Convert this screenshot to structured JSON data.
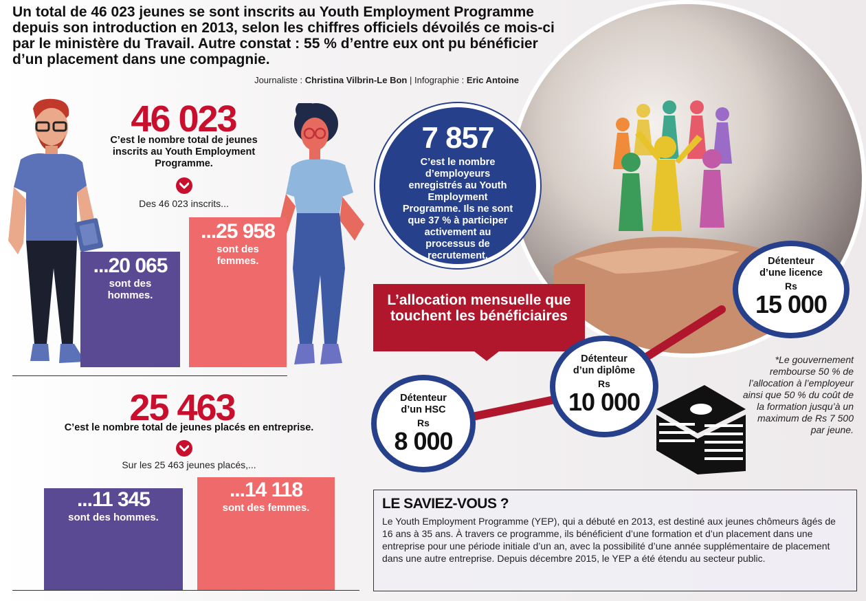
{
  "intro": "Un total de 46 023 jeunes se sont inscrits au Youth Employment Programme depuis son introduction en 2013, selon les chiffres officiels dévoilés ce mois-ci par le ministère du Travail. Autre constat : 55 % d’entre eux ont pu bénéficier d’un placement dans une compagnie.",
  "credits": {
    "journalist_label": "Journaliste :",
    "journalist": "Christina Vilbrin-Le Bon",
    "sep": "|",
    "infographic_label": "Infographie :",
    "infographic": "Eric Antoine"
  },
  "registered": {
    "total": "46 023",
    "caption": "C’est le nombre total de jeunes inscrits au Youth Employment Programme.",
    "sub": "Des 46 023 inscrits...",
    "men": {
      "value": "...20 065",
      "label": "sont des hommes."
    },
    "women": {
      "value": "...25 958",
      "label": "sont des femmes."
    }
  },
  "placed": {
    "total": "25 463",
    "caption": "C’est le nombre total de jeunes placés en entreprise.",
    "sub": "Sur les 25 463 jeunes placés,...",
    "men": {
      "value": "...11 345",
      "label": "sont des hommes."
    },
    "women": {
      "value": "...14 118",
      "label": "sont des femmes."
    }
  },
  "employers": {
    "value": "7 857",
    "caption": "C’est le nombre d’employeurs enregistrés au Youth Employment Programme. Ils ne sont que 37 % à participer activement au processus de recrutement."
  },
  "allowance": {
    "banner": "L’allocation mensuelle que touchent les bénéficiaires",
    "levels": [
      {
        "label": "Détenteur d’un HSC",
        "currency": "Rs",
        "amount": "8 000"
      },
      {
        "label": "Détenteur d’un diplôme",
        "currency": "Rs",
        "amount": "10 000"
      },
      {
        "label": "Détenteur d’une licence",
        "currency": "Rs",
        "amount": "15 000"
      }
    ],
    "note": "*Le gouvernement rembourse 50 % de l’allocation à l’employeur ainsi que 50 % du coût de la formation jusqu’à un maximum de Rs 7 500 par jeune."
  },
  "saviez": {
    "title": "LE SAVIEZ-VOUS ?",
    "body": "Le Youth Employment Programme (YEP), qui a débuté en 2013, est destiné aux jeunes chômeurs âgés de 16 ans à 35 ans. À travers ce programme, ils bénéficient d’une formation et d’un placement dans une entreprise pour une période initiale d’un an, avec la possibilité d’une année supplémentaire de placement dans une autre entreprise. Depuis décembre 2015, le YEP a été étendu au secteur public."
  },
  "colors": {
    "red": "#c8102e",
    "purple": "#5a4a94",
    "salmon": "#ef6b6b",
    "blue": "#27408b",
    "banner": "#b0172c"
  },
  "icons": [
    "man-illustration",
    "woman-illustration",
    "chevron-down-icon",
    "paper-people-photo",
    "money-stack-icon"
  ]
}
